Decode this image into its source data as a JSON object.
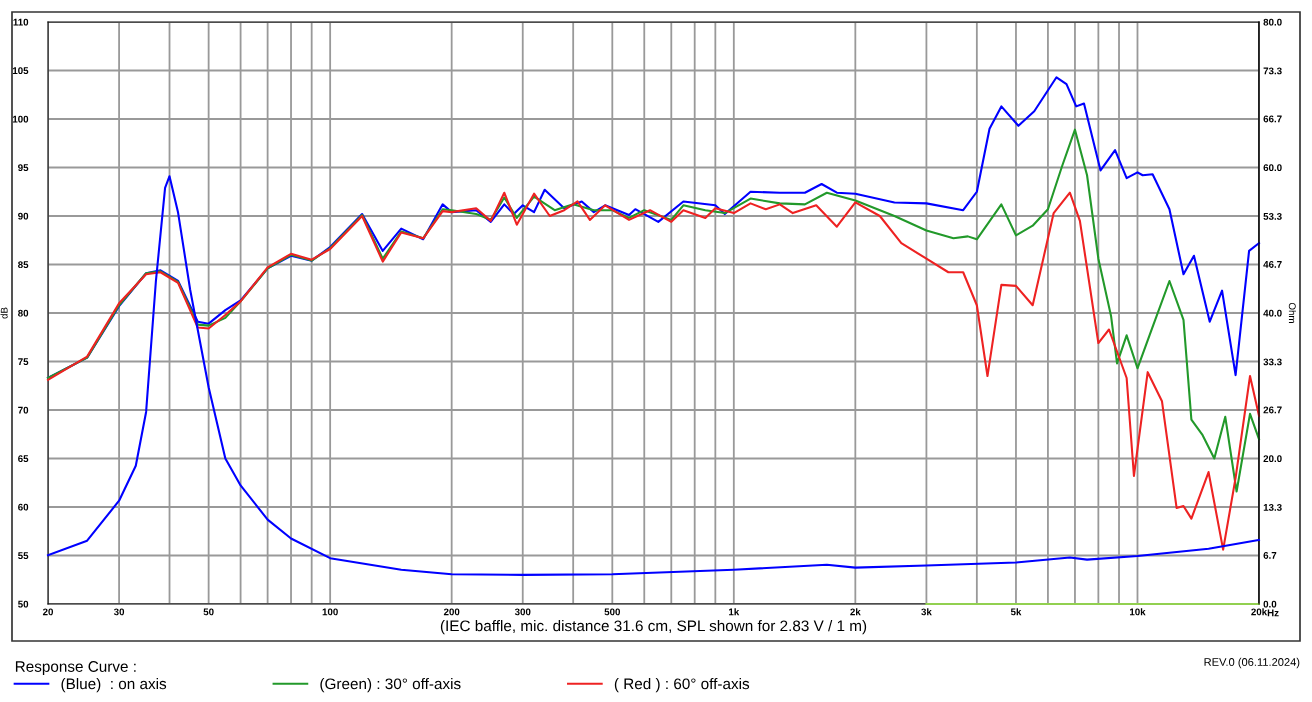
{
  "chart_data": {
    "type": "line",
    "xlabel": "(IEC baffle, mic. distance 31.6 cm, SPL shown for 2.83 V / 1 m)",
    "ylabel": "dB",
    "y2label": "Ohm",
    "legend_title": "Response Curve :",
    "annotations": [
      "REV.0 (06.11.2024)",
      "Hz"
    ],
    "log": "x",
    "grid": true,
    "legend": "bottom left",
    "line_style": "solid",
    "xlim": [
      20,
      20000
    ],
    "xticks": [
      20,
      30,
      {
        "value": 40,
        "label": null
      },
      50,
      {
        "value": 60,
        "label": null
      },
      {
        "value": 70,
        "label": null
      },
      {
        "value": 80,
        "label": null
      },
      {
        "value": 90,
        "label": null
      },
      100,
      200,
      300,
      {
        "value": 400,
        "label": null
      },
      500,
      {
        "value": 600,
        "label": null
      },
      {
        "value": 700,
        "label": null
      },
      {
        "value": 800,
        "label": null
      },
      {
        "value": 900,
        "label": null
      },
      {
        "value": 1000,
        "label": "1k"
      },
      {
        "value": 2000,
        "label": "2k"
      },
      {
        "value": 3000,
        "label": "3k"
      },
      {
        "value": 4000,
        "label": null
      },
      {
        "value": 5000,
        "label": "5k"
      },
      {
        "value": 6000,
        "label": null
      },
      {
        "value": 7000,
        "label": null
      },
      {
        "value": 8000,
        "label": null
      },
      {
        "value": 9000,
        "label": null
      },
      {
        "value": 10000,
        "label": "10k"
      },
      {
        "value": 20000,
        "label": "20k"
      }
    ],
    "ylim": [
      50,
      110
    ],
    "yticks": [
      50,
      55,
      60,
      65,
      70,
      75,
      80,
      85,
      90,
      95,
      100,
      105,
      110
    ],
    "y2lim": [
      0,
      80
    ],
    "y2ticks": [
      {
        "value": 0,
        "label": "0.0"
      },
      6.7,
      13.3,
      {
        "value": 20,
        "label": "20.0"
      },
      26.7,
      33.3,
      {
        "value": 40,
        "label": "40.0"
      },
      46.7,
      53.3,
      {
        "value": 60,
        "label": "60.0"
      },
      66.7,
      73.3,
      {
        "value": 80,
        "label": "80.0"
      }
    ],
    "series": [
      {
        "name": "(Blue)  : on axis",
        "color": "#0000ff",
        "x": [
          20,
          25,
          30,
          35,
          38,
          42,
          47,
          50,
          55,
          60,
          70,
          80,
          90,
          100,
          120,
          135,
          150,
          170,
          190,
          200,
          230,
          250,
          270,
          285,
          300,
          320,
          340,
          380,
          420,
          450,
          480,
          550,
          570,
          650,
          750,
          900,
          950,
          1100,
          1300,
          1500,
          1650,
          1800,
          2000,
          2500,
          3000,
          3700,
          4000,
          4300,
          4600,
          5070,
          5550,
          6300,
          6670,
          7050,
          7370,
          8100,
          8800,
          9400,
          10000,
          10300,
          10900,
          12000,
          13000,
          13800,
          15100,
          16200,
          17500,
          18900,
          20000
        ],
        "values": [
          73.3,
          75.4,
          80.7,
          84.1,
          84.4,
          83.3,
          79.1,
          78.9,
          80.3,
          81.3,
          84.6,
          85.9,
          85.4,
          86.8,
          90.2,
          86.4,
          88.7,
          87.6,
          91.2,
          90.4,
          90.6,
          89.4,
          91.2,
          90.2,
          91.1,
          90.4,
          92.7,
          90.8,
          91.5,
          90.4,
          91.1,
          90.1,
          90.7,
          89.4,
          91.5,
          91.1,
          90.2,
          92.5,
          92.4,
          92.4,
          93.3,
          92.4,
          92.3,
          91.4,
          91.3,
          90.6,
          92.5,
          99.0,
          101.3,
          99.3,
          100.8,
          104.3,
          103.6,
          101.3,
          101.6,
          94.7,
          96.8,
          93.9,
          94.5,
          94.2,
          94.3,
          90.7,
          84.0,
          85.9,
          79.1,
          82.3,
          73.6,
          86.4,
          87.2
        ]
      },
      {
        "name": "(Green) : 30° off-axis",
        "color": "#22992a",
        "x": [
          20,
          25,
          30,
          35,
          38,
          42,
          47,
          50,
          55,
          60,
          70,
          80,
          90,
          100,
          120,
          135,
          150,
          170,
          190,
          200,
          230,
          250,
          270,
          290,
          320,
          360,
          400,
          450,
          500,
          550,
          600,
          700,
          750,
          850,
          950,
          1100,
          1300,
          1500,
          1700,
          2000,
          2500,
          3000,
          3500,
          3800,
          4000,
          4600,
          5000,
          5500,
          6000,
          6500,
          7000,
          7500,
          8000,
          8600,
          8900,
          9400,
          10000,
          10800,
          12000,
          13000,
          13600,
          14500,
          15500,
          16500,
          17600,
          19000,
          20000
        ],
        "values": [
          73.3,
          75.4,
          80.8,
          84.1,
          84.3,
          83.2,
          78.8,
          78.7,
          79.5,
          81.2,
          84.6,
          86.0,
          85.4,
          86.7,
          90.1,
          85.6,
          88.4,
          87.7,
          90.7,
          90.6,
          90.2,
          89.6,
          91.9,
          89.8,
          92.0,
          90.6,
          91.2,
          90.6,
          90.6,
          89.8,
          90.6,
          89.6,
          91.1,
          90.6,
          90.3,
          91.8,
          91.3,
          91.2,
          92.4,
          91.6,
          90.0,
          88.5,
          87.7,
          87.9,
          87.6,
          91.2,
          88.0,
          89.0,
          90.7,
          95.1,
          98.9,
          94.2,
          85.6,
          79.7,
          74.8,
          77.7,
          74.3,
          78.1,
          83.3,
          79.3,
          69.0,
          67.4,
          65.0,
          69.3,
          61.6,
          69.6,
          67.0
        ]
      },
      {
        "name": "( Red ) : 60° off-axis",
        "color": "#ee2222",
        "x": [
          20,
          25,
          30,
          35,
          38,
          42,
          47,
          50,
          55,
          60,
          70,
          80,
          90,
          100,
          120,
          135,
          150,
          170,
          190,
          200,
          230,
          250,
          270,
          290,
          320,
          350,
          380,
          410,
          440,
          480,
          550,
          620,
          700,
          750,
          850,
          900,
          1000,
          1100,
          1200,
          1300,
          1400,
          1600,
          1800,
          2000,
          2300,
          2600,
          3000,
          3400,
          3700,
          4000,
          4250,
          4600,
          5000,
          5500,
          6200,
          6800,
          7200,
          8000,
          8500,
          9400,
          9800,
          10600,
          11500,
          12500,
          13000,
          13600,
          15000,
          16300,
          17500,
          19000,
          20000
        ],
        "values": [
          73.1,
          75.5,
          81.0,
          84.0,
          84.2,
          83.1,
          78.5,
          78.4,
          79.8,
          81.2,
          84.7,
          86.1,
          85.5,
          86.6,
          90.0,
          85.3,
          88.3,
          87.7,
          90.5,
          90.4,
          90.8,
          89.5,
          92.4,
          89.1,
          92.3,
          90.0,
          90.6,
          91.5,
          89.6,
          91.1,
          89.6,
          90.6,
          89.4,
          90.6,
          89.8,
          90.8,
          90.3,
          91.3,
          90.7,
          91.2,
          90.3,
          91.1,
          88.9,
          91.4,
          90.0,
          87.2,
          85.6,
          84.2,
          84.2,
          80.8,
          73.5,
          82.9,
          82.8,
          80.8,
          90.3,
          92.4,
          89.5,
          76.9,
          78.3,
          73.3,
          63.2,
          73.9,
          70.9,
          59.9,
          60.1,
          58.8,
          63.6,
          55.6,
          63.0,
          73.5,
          69.4
        ]
      },
      {
        "color": "#0000ff",
        "axis": "y2",
        "x": [
          20,
          25,
          30,
          33,
          35,
          37,
          39,
          40,
          42,
          45,
          50,
          55,
          60,
          70,
          80,
          100,
          150,
          200,
          300,
          500,
          1000,
          1700,
          2000,
          3000,
          5000,
          6800,
          7500,
          10000,
          15000,
          20000
        ],
        "values": [
          6.7,
          8.7,
          14.2,
          19.0,
          26.4,
          44.3,
          57.2,
          58.8,
          53.8,
          43.2,
          29.8,
          20.0,
          16.3,
          11.6,
          9.0,
          6.3,
          4.7,
          4.1,
          4.0,
          4.1,
          4.7,
          5.4,
          5.0,
          5.3,
          5.7,
          6.4,
          6.1,
          6.6,
          7.6,
          8.8
        ]
      },
      {
        "color": "#92d050",
        "x": [
          3000,
          20000
        ],
        "values": [
          50,
          50
        ]
      }
    ]
  }
}
